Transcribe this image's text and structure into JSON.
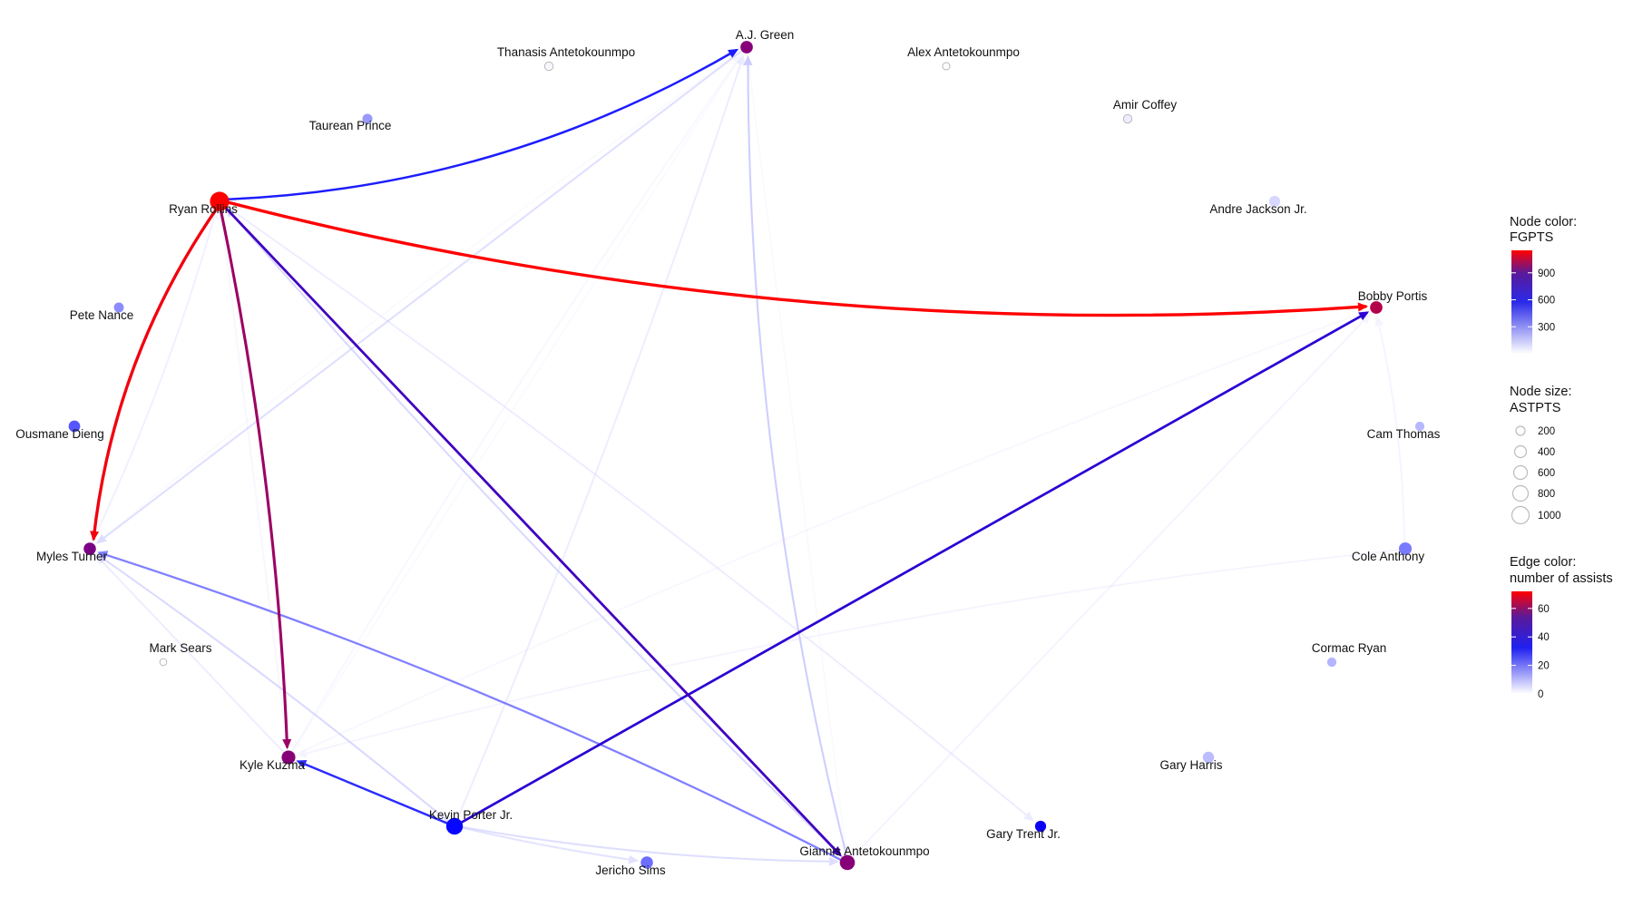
{
  "nodes": [
    {
      "id": "aj",
      "label": "A.J. Green",
      "fgpts": 880,
      "astpts": 300
    },
    {
      "id": "thanasis",
      "label": "Thanasis Antetokounmpo",
      "fgpts": 20,
      "astpts": 80
    },
    {
      "id": "alex",
      "label": "Alex Antetokounmpo",
      "fgpts": 5,
      "astpts": 40
    },
    {
      "id": "taurean",
      "label": "Taurean Prince",
      "fgpts": 230,
      "astpts": 150
    },
    {
      "id": "amir",
      "label": "Amir Coffey",
      "fgpts": 40,
      "astpts": 80
    },
    {
      "id": "ryan",
      "label": "Ryan Rollins",
      "fgpts": 1150,
      "astpts": 1050
    },
    {
      "id": "andre",
      "label": "Andre Jackson Jr.",
      "fgpts": 90,
      "astpts": 210
    },
    {
      "id": "bobby",
      "label": "Bobby Portis",
      "fgpts": 980,
      "astpts": 300
    },
    {
      "id": "pete",
      "label": "Pete Nance",
      "fgpts": 260,
      "astpts": 140
    },
    {
      "id": "ousmane",
      "label": "Ousmane Dieng",
      "fgpts": 380,
      "astpts": 240
    },
    {
      "id": "cam",
      "label": "Cam Thomas",
      "fgpts": 160,
      "astpts": 110
    },
    {
      "id": "myles",
      "label": "Myles Turner",
      "fgpts": 850,
      "astpts": 290
    },
    {
      "id": "cole",
      "label": "Cole Anthony",
      "fgpts": 300,
      "astpts": 330
    },
    {
      "id": "mark",
      "label": "Mark Sears",
      "fgpts": 5,
      "astpts": 30
    },
    {
      "id": "cormac",
      "label": "Cormac Ryan",
      "fgpts": 170,
      "astpts": 110
    },
    {
      "id": "kyle",
      "label": "Kyle Kuzma",
      "fgpts": 880,
      "astpts": 410
    },
    {
      "id": "gary_h",
      "label": "Gary Harris",
      "fgpts": 150,
      "astpts": 220
    },
    {
      "id": "kevin",
      "label": "Kevin Porter Jr.",
      "fgpts": 560,
      "astpts": 720
    },
    {
      "id": "gary_t",
      "label": "Gary Trent Jr.",
      "fgpts": 600,
      "astpts": 210
    },
    {
      "id": "jericho",
      "label": "Jericho Sims",
      "fgpts": 330,
      "astpts": 290
    },
    {
      "id": "giannis",
      "label": "Giannis Antetokounmpo",
      "fgpts": 880,
      "astpts": 540
    }
  ],
  "edges": [
    {
      "from": "ryan",
      "to": "bobby",
      "assists": 72,
      "curve": 0.08
    },
    {
      "from": "ryan",
      "to": "myles",
      "assists": 70,
      "curve": 0.12
    },
    {
      "from": "ryan",
      "to": "kyle",
      "assists": 58,
      "curve": -0.04
    },
    {
      "from": "ryan",
      "to": "aj",
      "assists": 32,
      "curve": 0.12
    },
    {
      "from": "ryan",
      "to": "giannis",
      "assists": 45,
      "curve": 0.0
    },
    {
      "from": "kevin",
      "to": "bobby",
      "assists": 42,
      "curve": 0.0
    },
    {
      "from": "kevin",
      "to": "kyle",
      "assists": 30,
      "curve": 0.0
    },
    {
      "from": "giannis",
      "to": "myles",
      "assists": 22,
      "curve": 0.04
    },
    {
      "from": "giannis",
      "to": "aj",
      "assists": 12,
      "curve": -0.06
    },
    {
      "from": "giannis",
      "to": "ryan",
      "assists": 10,
      "curve": -0.02
    },
    {
      "from": "kyle",
      "to": "myles",
      "assists": 6,
      "curve": 0.0
    },
    {
      "from": "myles",
      "to": "ryan",
      "assists": 5,
      "curve": 0.04
    },
    {
      "from": "kevin",
      "to": "myles",
      "assists": 10,
      "curve": 0.02
    },
    {
      "from": "kevin",
      "to": "aj",
      "assists": 6,
      "curve": 0.02
    },
    {
      "from": "kevin",
      "to": "jericho",
      "assists": 8,
      "curve": 0.02
    },
    {
      "from": "kevin",
      "to": "giannis",
      "assists": 9,
      "curve": 0.04
    },
    {
      "from": "cole",
      "to": "bobby",
      "assists": 4,
      "curve": 0.05
    },
    {
      "from": "cole",
      "to": "kyle",
      "assists": 4,
      "curve": 0.04
    },
    {
      "from": "giannis",
      "to": "bobby",
      "assists": 4,
      "curve": 0.0
    },
    {
      "from": "kyle",
      "to": "bobby",
      "assists": 3,
      "curve": -0.02
    },
    {
      "from": "kyle",
      "to": "aj",
      "assists": 3,
      "curve": -0.02
    },
    {
      "from": "kyle",
      "to": "ryan",
      "assists": 3,
      "curve": 0.0
    },
    {
      "from": "aj",
      "to": "myles",
      "assists": 9,
      "curve": 0.0
    },
    {
      "from": "ryan",
      "to": "gary_t",
      "assists": 6,
      "curve": -0.02
    },
    {
      "from": "myles",
      "to": "aj",
      "assists": 2,
      "curve": -0.02
    },
    {
      "from": "aj",
      "to": "kyle",
      "assists": 2,
      "curve": 0.0
    },
    {
      "from": "aj",
      "to": "giannis",
      "assists": 2,
      "curve": 0.0
    }
  ],
  "legend": {
    "node_color": {
      "title_line1": "Node color:",
      "title_line2": "FGPTS",
      "ticks": [
        "900",
        "600",
        "300"
      ],
      "tick_values": [
        900,
        600,
        300
      ],
      "min": 0,
      "max": 1150
    },
    "node_size": {
      "title_line1": "Node size:",
      "title_line2": "ASTPTS",
      "entries": [
        "200",
        "400",
        "600",
        "800",
        "1000"
      ]
    },
    "edge_color": {
      "title_line1": "Edge color:",
      "title_line2": "number of assists",
      "ticks": [
        "60",
        "40",
        "20",
        "0"
      ],
      "tick_values": [
        60,
        40,
        20,
        0
      ],
      "min": 0,
      "max": 72
    }
  },
  "colors": {
    "low": "#ffffff",
    "mid": "#0000ff",
    "high": "#ff0000",
    "label": "#111111",
    "edge_alpha_low": 0.3
  }
}
